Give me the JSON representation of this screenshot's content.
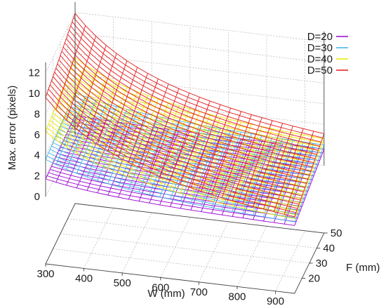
{
  "chart_data": {
    "type": "surface",
    "title": "",
    "xlabel": "W (mm)",
    "ylabel": "F (mm)",
    "zlabel": "Max. error (pixels)",
    "xlim": [
      300,
      950
    ],
    "ylim": [
      10,
      50
    ],
    "zlim": [
      0,
      12
    ],
    "x_ticks": [
      "300",
      "400",
      "500",
      "600",
      "700",
      "800",
      "900"
    ],
    "y_ticks": [
      "20",
      "30",
      "40",
      "50"
    ],
    "z_ticks": [
      "0",
      "2",
      "4",
      "6",
      "8",
      "10",
      "12"
    ],
    "grid": true,
    "legend_position": "top-right",
    "formula_note": null,
    "series": [
      {
        "name": "D=20",
        "color": "#9b00d3",
        "corners": {
          "W300_F10": 1.7,
          "W300_F50": 2.0,
          "W950_F10": 0.05,
          "W950_F50": 1.6
        }
      },
      {
        "name": "D=30",
        "color": "#3fb0e6",
        "corners": {
          "W300_F10": 3.6,
          "W300_F50": 4.2,
          "W950_F10": 0.4,
          "W950_F50": 2.0
        }
      },
      {
        "name": "D=40",
        "color": "#e8e800",
        "corners": {
          "W300_F10": 6.3,
          "W300_F50": 7.6,
          "W950_F10": 0.7,
          "W950_F50": 2.6
        }
      },
      {
        "name": "D=50",
        "color": "#e31a1c",
        "corners": {
          "W300_F10": 9.6,
          "W300_F50": 11.9,
          "W950_F10": 0.9,
          "W950_F50": 3.1
        }
      }
    ]
  }
}
